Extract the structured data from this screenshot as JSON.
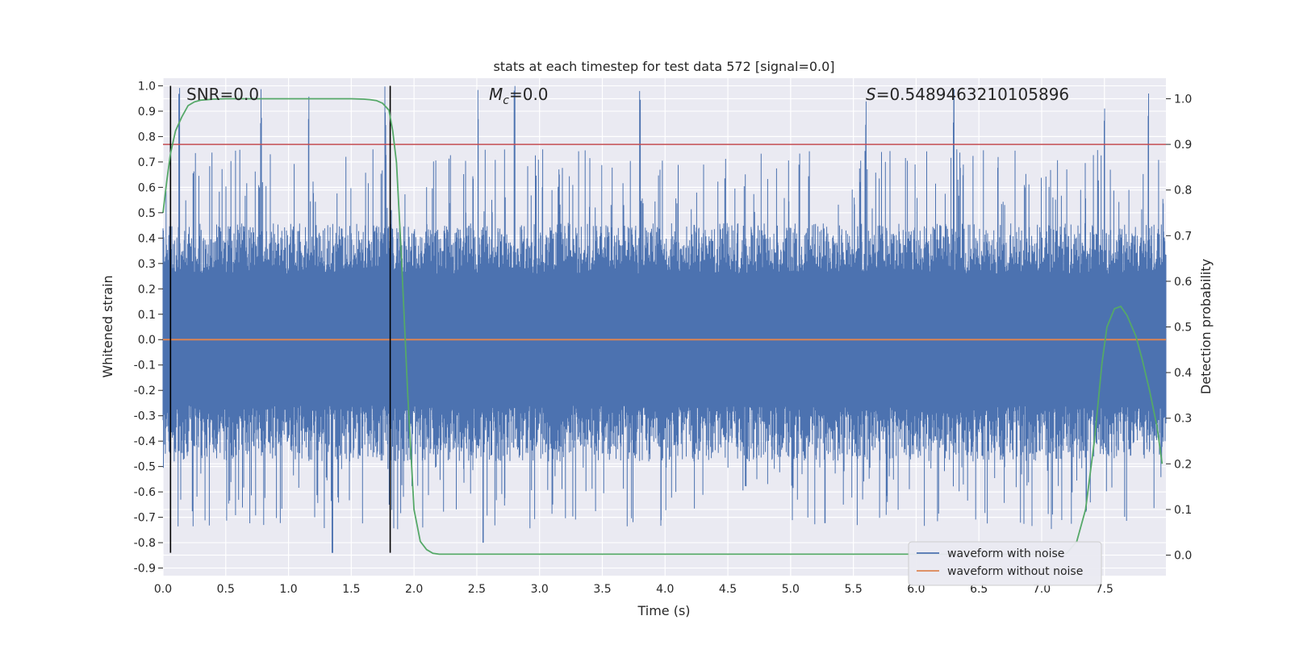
{
  "chart_data": {
    "type": "line",
    "title": "stats at each timestep for test data 572 [signal=0.0]",
    "xlabel": "Time (s)",
    "ylabel": "Whitened strain",
    "y2label": "Detection probability",
    "xlim": [
      0.0,
      7.99
    ],
    "ylim": [
      -0.93,
      1.03
    ],
    "y2lim": [
      -0.045,
      1.045
    ],
    "x_ticks": [
      "0.0",
      "0.5",
      "1.0",
      "1.5",
      "2.0",
      "2.5",
      "3.0",
      "3.5",
      "4.0",
      "4.5",
      "5.0",
      "5.5",
      "6.0",
      "6.5",
      "7.0",
      "7.5"
    ],
    "y_ticks": [
      "1.0",
      "0.9",
      "0.8",
      "0.7",
      "0.6",
      "0.5",
      "0.4",
      "0.3",
      "0.2",
      "0.1",
      "0.0",
      "-0.1",
      "-0.2",
      "-0.3",
      "-0.4",
      "-0.5",
      "-0.6",
      "-0.7",
      "-0.8",
      "-0.9"
    ],
    "y2_ticks": [
      "1.0",
      "0.9",
      "0.8",
      "0.7",
      "0.6",
      "0.5",
      "0.4",
      "0.3",
      "0.2",
      "0.1",
      "0.0"
    ],
    "grid": true,
    "annotations": {
      "snr": "SNR=0.0",
      "mc_symbol": "M",
      "mc_sub": "c",
      "mc_value": "=0.0",
      "s_symbol": "S",
      "s_value": "=0.5489463210105896"
    },
    "legend": {
      "placement": "lower-right",
      "entries": [
        "waveform with noise",
        "waveform without noise"
      ]
    },
    "series": [
      {
        "name": "waveform with noise",
        "color": "#4c72b0",
        "axis": "left",
        "description_values": {
          "min": -0.84,
          "max": 1.0,
          "peak_times": [
            0.13,
            0.78,
            1.16,
            1.77,
            2.51,
            2.8,
            3.8,
            5.6,
            6.3,
            7.5,
            7.85
          ]
        }
      },
      {
        "name": "waveform without noise",
        "color": "#dd8452",
        "axis": "left",
        "x": [
          0.0,
          7.99
        ],
        "y": [
          0.0,
          0.0
        ]
      },
      {
        "name": "detection probability",
        "color": "#55a868",
        "axis": "right",
        "x": [
          0.0,
          0.03,
          0.06,
          0.1,
          0.15,
          0.2,
          0.25,
          0.3,
          0.4,
          0.5,
          1.0,
          1.5,
          1.6,
          1.65,
          1.7,
          1.75,
          1.8,
          1.83,
          1.86,
          1.9,
          1.95,
          2.0,
          2.05,
          2.1,
          2.15,
          2.2,
          3.0,
          5.0,
          7.0,
          7.2,
          7.28,
          7.35,
          7.42,
          7.48,
          7.52,
          7.58,
          7.63,
          7.68,
          7.75,
          7.8,
          7.86,
          7.92,
          7.96
        ],
        "y": [
          0.75,
          0.82,
          0.88,
          0.93,
          0.96,
          0.985,
          0.993,
          0.997,
          0.999,
          1.0,
          1.0,
          1.0,
          0.999,
          0.998,
          0.996,
          0.99,
          0.975,
          0.93,
          0.86,
          0.65,
          0.35,
          0.1,
          0.03,
          0.012,
          0.004,
          0.002,
          0.002,
          0.002,
          0.002,
          0.004,
          0.03,
          0.1,
          0.25,
          0.42,
          0.5,
          0.54,
          0.545,
          0.525,
          0.48,
          0.43,
          0.36,
          0.28,
          0.2
        ]
      },
      {
        "name": "threshold",
        "color": "#c44e52",
        "axis": "right",
        "x": [
          0.0,
          7.99
        ],
        "y": [
          0.9,
          0.9
        ]
      }
    ],
    "vlines": [
      0.06,
      1.81
    ]
  }
}
